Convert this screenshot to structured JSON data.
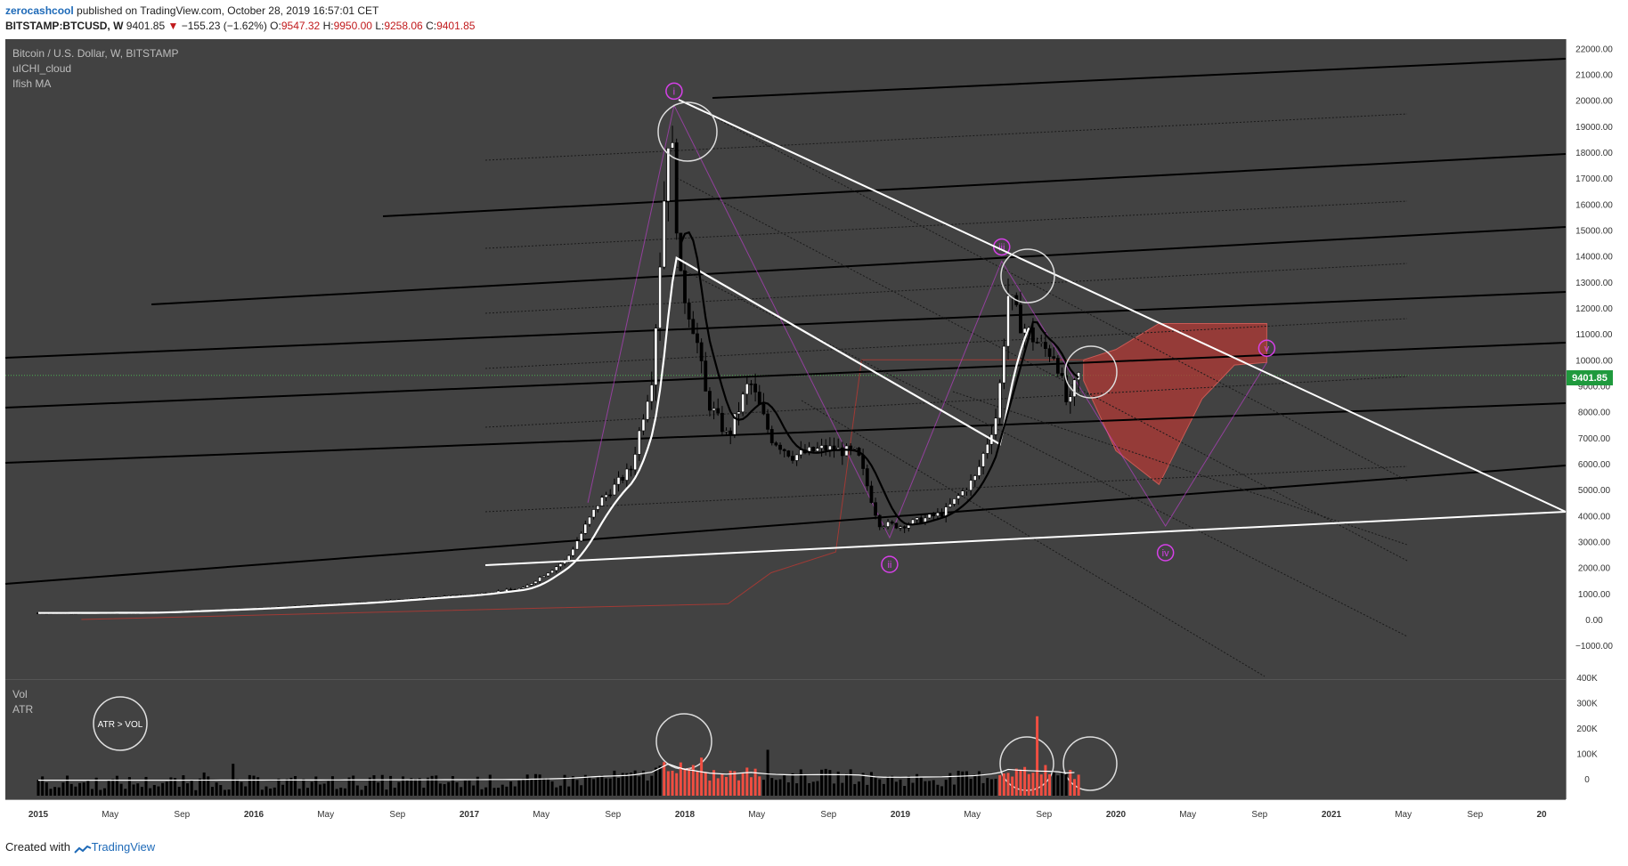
{
  "header": {
    "author": "zerocashcool",
    "published": "published on TradingView.com, October 28, 2019 16:57:01 CET",
    "symbol": "BITSTAMP:BTCUSD, W",
    "last": "9401.85",
    "change": "−155.23 (−1.62%)",
    "open_label": "O:",
    "open": "9547.32",
    "high_label": "H:",
    "high": "9950.00",
    "low_label": "L:",
    "low": "9258.06",
    "close_label": "C:",
    "close": "9401.85"
  },
  "legend": {
    "title": "Bitcoin / U.S. Dollar, W, BITSTAMP",
    "indicator1": "uICHI_cloud",
    "indicator2": "Ifish MA",
    "vol": "Vol",
    "atr": "ATR",
    "note": "ATR > VOL"
  },
  "price_label": "9401.85",
  "footer": {
    "created_with": "Created with",
    "brand": "TradingView"
  },
  "wave_labels": [
    "i",
    "ii",
    "iii",
    "iv",
    "v"
  ],
  "colors": {
    "panel_bg": "#424242",
    "bear": "#f04e41",
    "cloud": "#b13a35",
    "wave": "#d640e8",
    "price_line": "#4caf50",
    "price_tag": "#1f9a3d"
  },
  "chart_data": {
    "type": "candlestick",
    "title": "Bitcoin / U.S. Dollar, W, BITSTAMP",
    "x_ticks": [
      "2015",
      "May",
      "Sep",
      "2016",
      "May",
      "Sep",
      "2017",
      "May",
      "Sep",
      "2018",
      "May",
      "Sep",
      "2019",
      "May",
      "Sep",
      "2020",
      "May",
      "Sep",
      "2021",
      "May",
      "Sep",
      "20"
    ],
    "y_ticks": [
      "22000.00",
      "21000.00",
      "20000.00",
      "19000.00",
      "18000.00",
      "17000.00",
      "16000.00",
      "15000.00",
      "14000.00",
      "13000.00",
      "12000.00",
      "11000.00",
      "10000.00",
      "9000.00",
      "8000.00",
      "7000.00",
      "6000.00",
      "5000.00",
      "4000.00",
      "3000.00",
      "2000.00",
      "1000.00",
      "0.00",
      "−1000.00"
    ],
    "ylim": [
      -1000,
      22000
    ],
    "volume_ticks": [
      "400K",
      "300K",
      "200K",
      "100K",
      "0"
    ],
    "last_price": 9401.85,
    "price_path": [
      [
        2015.0,
        250
      ],
      [
        2015.5,
        260
      ],
      [
        2016.0,
        420
      ],
      [
        2016.5,
        650
      ],
      [
        2017.0,
        950
      ],
      [
        2017.25,
        1200
      ],
      [
        2017.45,
        2300
      ],
      [
        2017.6,
        4500
      ],
      [
        2017.75,
        5800
      ],
      [
        2017.85,
        9500
      ],
      [
        2017.93,
        19500
      ],
      [
        2017.98,
        13000
      ],
      [
        2018.05,
        11000
      ],
      [
        2018.1,
        8500
      ],
      [
        2018.2,
        7000
      ],
      [
        2018.3,
        9200
      ],
      [
        2018.4,
        7000
      ],
      [
        2018.5,
        6300
      ],
      [
        2018.65,
        6600
      ],
      [
        2018.8,
        6400
      ],
      [
        2018.9,
        3700
      ],
      [
        2019.0,
        3600
      ],
      [
        2019.2,
        4100
      ],
      [
        2019.35,
        5500
      ],
      [
        2019.45,
        8000
      ],
      [
        2019.5,
        12500
      ],
      [
        2019.55,
        11500
      ],
      [
        2019.65,
        10500
      ],
      [
        2019.72,
        10200
      ],
      [
        2019.78,
        8000
      ],
      [
        2019.82,
        9400
      ]
    ],
    "cloud_projection": [
      [
        2019.85,
        9200,
        10000
      ],
      [
        2020.0,
        6500,
        10400
      ],
      [
        2020.2,
        5200,
        11400
      ],
      [
        2020.4,
        8500,
        11400
      ],
      [
        2020.55,
        9800,
        11400
      ],
      [
        2020.7,
        9900,
        11400
      ]
    ],
    "wave_points": [
      {
        "label": "i",
        "x": 2017.95,
        "y": 19800
      },
      {
        "label": "ii",
        "x": 2018.95,
        "y": 3150
      },
      {
        "label": "iii",
        "x": 2019.47,
        "y": 13800
      },
      {
        "label": "iv",
        "x": 2020.23,
        "y": 3600
      },
      {
        "label": "v",
        "x": 2020.7,
        "y": 9900
      }
    ]
  }
}
